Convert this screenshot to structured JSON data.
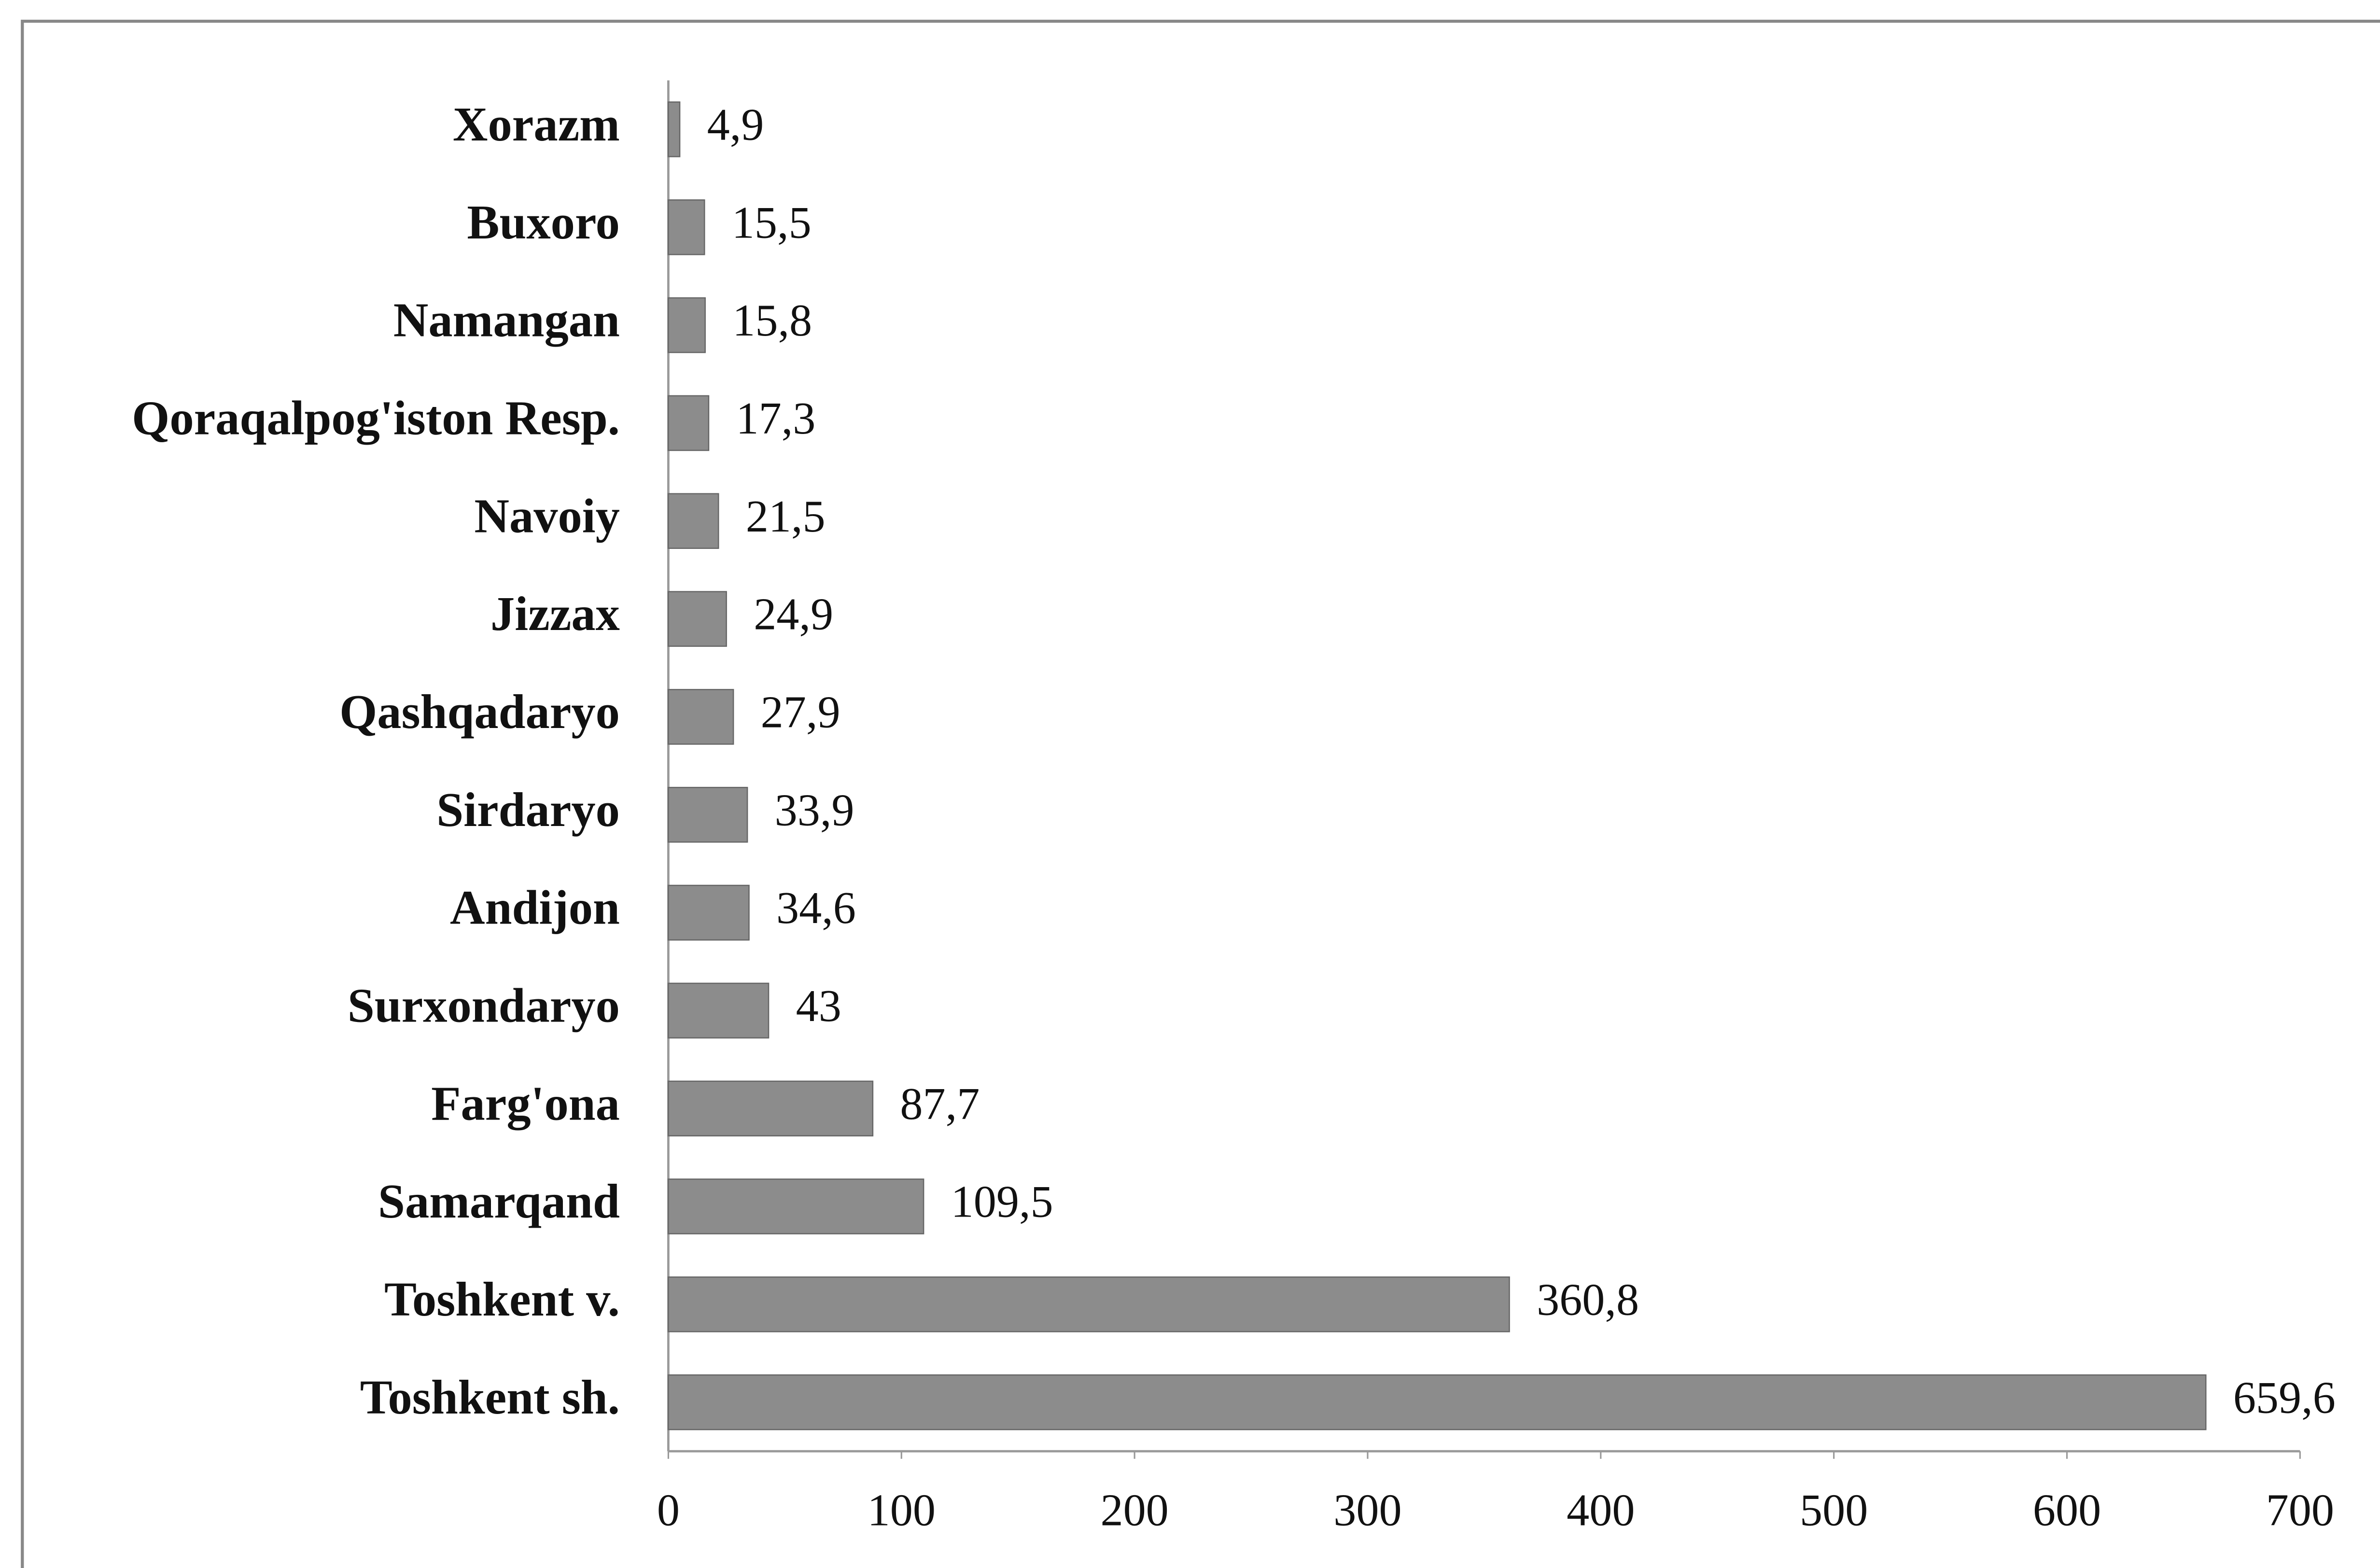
{
  "chart_data": {
    "type": "bar",
    "orientation": "horizontal",
    "categories": [
      "Xorazm",
      "Buxoro",
      "Namangan",
      "Qoraqalpog'iston Resp.",
      "Navoiy",
      "Jizzax",
      "Qashqadaryo",
      "Sirdaryo",
      "Andijon",
      "Surxondaryo",
      "Farg'ona",
      "Samarqand",
      "Toshkent v.",
      "Toshkent sh."
    ],
    "values": [
      4.9,
      15.5,
      15.8,
      17.3,
      21.5,
      24.9,
      27.9,
      33.9,
      34.6,
      43,
      87.7,
      109.5,
      360.8,
      659.6
    ],
    "value_labels": [
      "4,9",
      "15,5",
      "15,8",
      "17,3",
      "21,5",
      "24,9",
      "27,9",
      "33,9",
      "34,6",
      "43",
      "87,7",
      "109,5",
      "360,8",
      "659,6"
    ],
    "color": "#8c8c8c",
    "xlim": [
      0,
      700
    ],
    "xticks": [
      0,
      100,
      200,
      300,
      400,
      500,
      600,
      700
    ],
    "grid": false
  }
}
